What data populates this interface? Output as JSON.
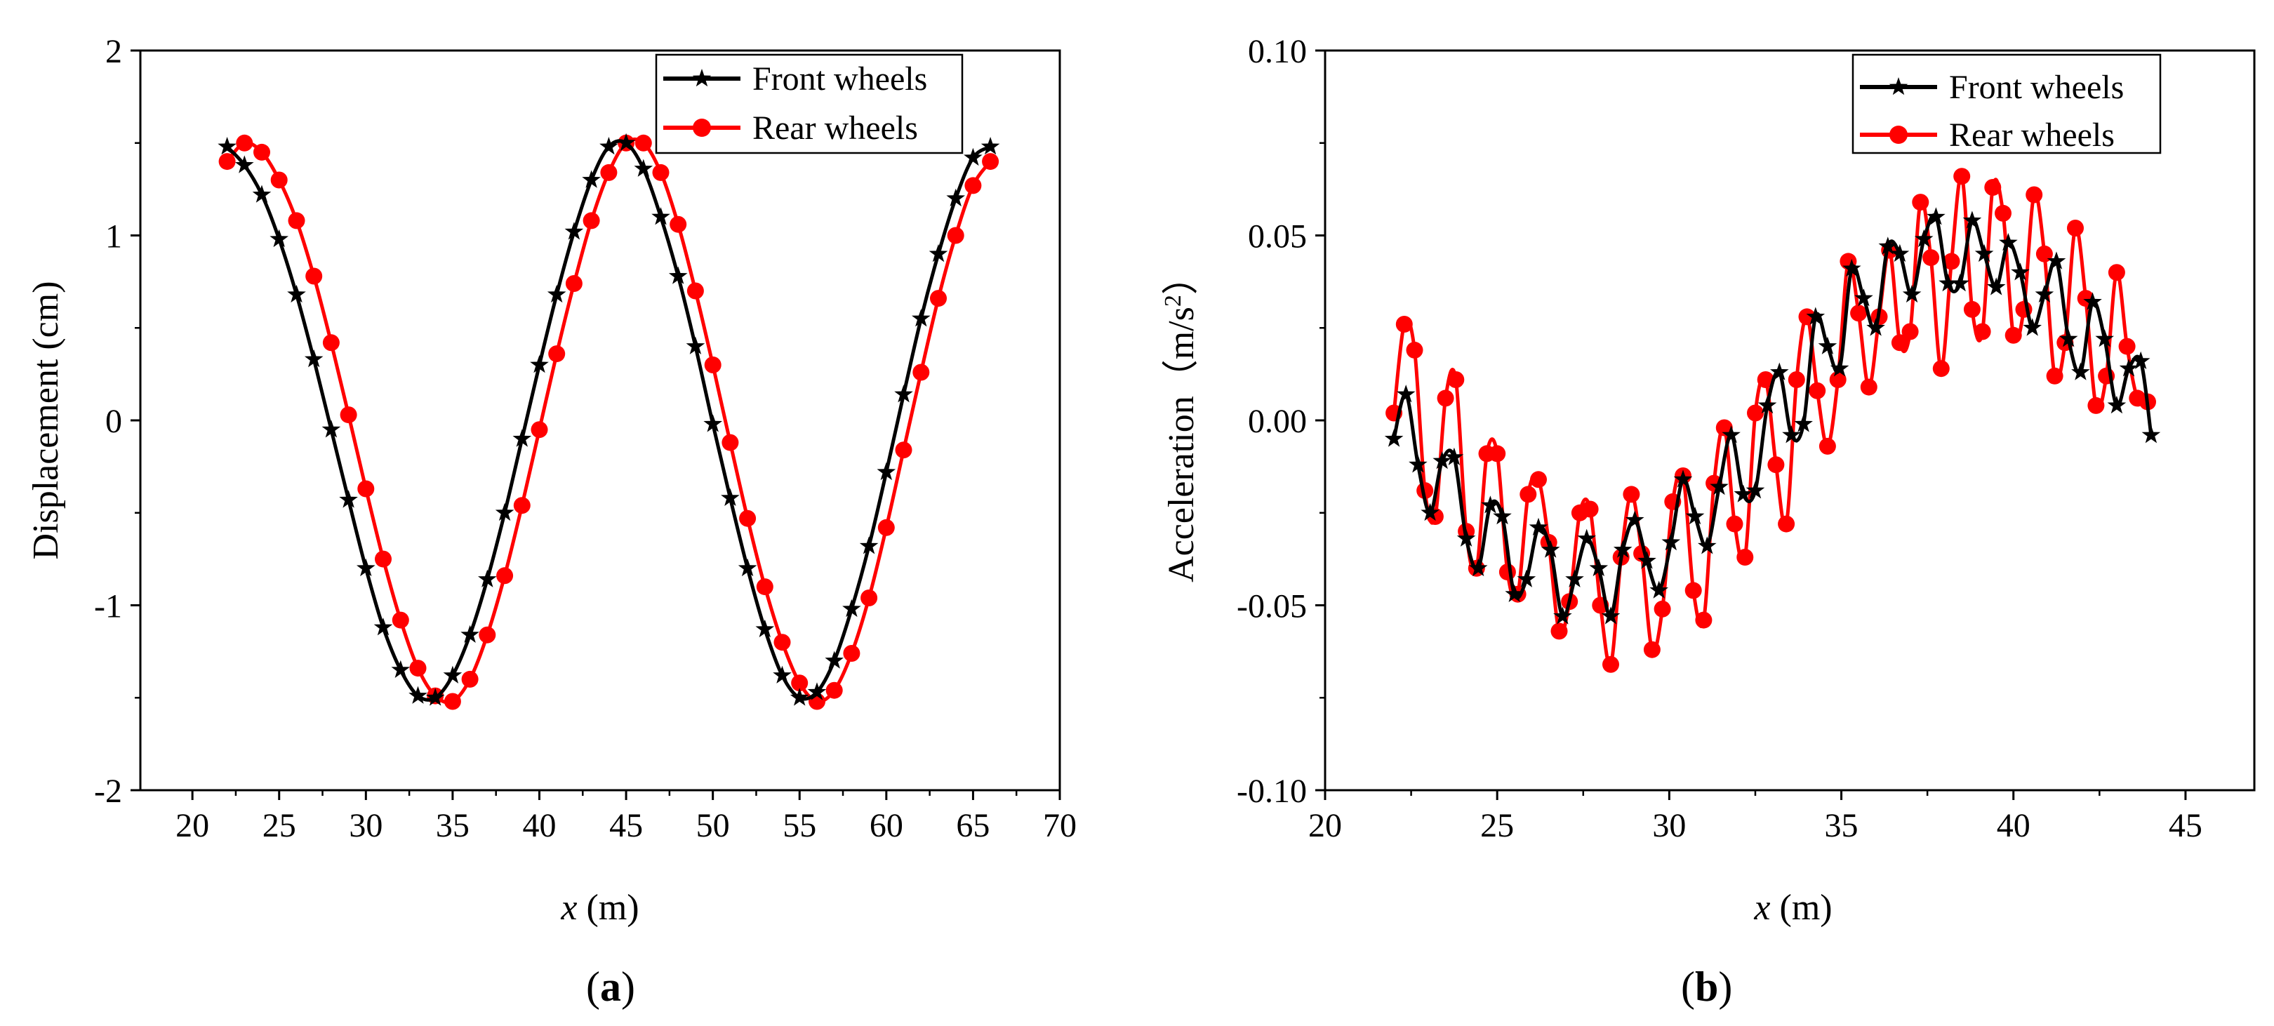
{
  "panel_labels": {
    "a_open": "(",
    "a_letter": "a",
    "a_close": ")",
    "b_open": "(",
    "b_letter": "b",
    "b_close": ")"
  },
  "colors": {
    "front": "#000000",
    "rear": "#ff0000",
    "axis": "#000000"
  },
  "chart_data": [
    {
      "id": "a",
      "type": "line",
      "title": "",
      "xlabel_var": "x",
      "xlabel_unit": " (m)",
      "ylabel": "Displacement (cm)",
      "xlim": [
        17,
        70
      ],
      "ylim": [
        -2,
        2
      ],
      "xticks": [
        20,
        25,
        30,
        35,
        40,
        45,
        50,
        55,
        60,
        65,
        70
      ],
      "xtick_labels": [
        "20",
        "25",
        "30",
        "35",
        "40",
        "45",
        "50",
        "55",
        "60",
        "65",
        "70"
      ],
      "yticks": [
        -2,
        -1,
        0,
        1,
        2
      ],
      "ytick_labels": [
        "-2",
        "-1",
        "0",
        "1",
        "2"
      ],
      "legend_position": "top-right",
      "series": [
        {
          "name": "Front wheels",
          "marker": "star",
          "color": "#000000",
          "x": [
            22,
            23,
            24,
            25,
            26,
            27,
            28,
            29,
            30,
            31,
            32,
            33,
            34,
            35,
            36,
            37,
            38,
            39,
            40,
            41,
            42,
            43,
            44,
            45,
            46,
            47,
            48,
            49,
            50,
            51,
            52,
            53,
            54,
            55,
            56,
            57,
            58,
            59,
            60,
            61,
            62,
            63,
            64,
            65,
            66
          ],
          "y": [
            1.48,
            1.38,
            1.22,
            0.98,
            0.68,
            0.33,
            -0.05,
            -0.43,
            -0.8,
            -1.12,
            -1.35,
            -1.49,
            -1.5,
            -1.38,
            -1.16,
            -0.86,
            -0.5,
            -0.1,
            0.3,
            0.68,
            1.02,
            1.3,
            1.48,
            1.5,
            1.36,
            1.1,
            0.78,
            0.4,
            -0.02,
            -0.42,
            -0.8,
            -1.13,
            -1.38,
            -1.5,
            -1.47,
            -1.3,
            -1.02,
            -0.68,
            -0.28,
            0.14,
            0.55,
            0.9,
            1.2,
            1.42,
            1.48
          ]
        },
        {
          "name": "Rear wheels",
          "marker": "circle",
          "color": "#ff0000",
          "x": [
            22,
            23,
            24,
            25,
            26,
            27,
            28,
            29,
            30,
            31,
            32,
            33,
            34,
            35,
            36,
            37,
            38,
            39,
            40,
            41,
            42,
            43,
            44,
            45,
            46,
            47,
            48,
            49,
            50,
            51,
            52,
            53,
            54,
            55,
            56,
            57,
            58,
            59,
            60,
            61,
            62,
            63,
            64,
            65,
            66
          ],
          "y": [
            1.4,
            1.5,
            1.45,
            1.3,
            1.08,
            0.78,
            0.42,
            0.03,
            -0.37,
            -0.75,
            -1.08,
            -1.34,
            -1.49,
            -1.52,
            -1.4,
            -1.16,
            -0.84,
            -0.46,
            -0.05,
            0.36,
            0.74,
            1.08,
            1.34,
            1.5,
            1.5,
            1.34,
            1.06,
            0.7,
            0.3,
            -0.12,
            -0.53,
            -0.9,
            -1.2,
            -1.42,
            -1.52,
            -1.46,
            -1.26,
            -0.96,
            -0.58,
            -0.16,
            0.26,
            0.66,
            1.0,
            1.27,
            1.4
          ]
        }
      ]
    },
    {
      "id": "b",
      "type": "line",
      "title": "",
      "xlabel_var": "x",
      "xlabel_unit": " (m)",
      "ylabel": "Acceleration（m/s",
      "ylabel_sup": "2",
      "ylabel_end": "）",
      "xlim": [
        20,
        47
      ],
      "ylim": [
        -0.1,
        0.1
      ],
      "xticks": [
        20,
        25,
        30,
        35,
        40,
        45
      ],
      "xtick_labels": [
        "20",
        "25",
        "30",
        "35",
        "40",
        "45"
      ],
      "yticks": [
        -0.1,
        -0.05,
        0,
        0.05,
        0.1
      ],
      "ytick_labels": [
        "-0.10",
        "-0.05",
        "0.00",
        "0.05",
        "0.10"
      ],
      "legend_position": "top-right",
      "series": [
        {
          "name": "Front wheels",
          "marker": "star",
          "color": "#000000",
          "x": [
            22.0,
            22.35,
            22.7,
            23.05,
            23.4,
            23.75,
            24.1,
            24.45,
            24.8,
            25.15,
            25.5,
            25.85,
            26.2,
            26.55,
            26.9,
            27.25,
            27.6,
            27.95,
            28.3,
            28.65,
            29.0,
            29.35,
            29.7,
            30.05,
            30.4,
            30.75,
            31.1,
            31.45,
            31.8,
            32.15,
            32.5,
            32.85,
            33.2,
            33.55,
            33.9,
            34.25,
            34.6,
            34.95,
            35.3,
            35.65,
            36.0,
            36.35,
            36.7,
            37.05,
            37.4,
            37.75,
            38.1,
            38.45,
            38.8,
            39.15,
            39.5,
            39.85,
            40.2,
            40.55,
            40.9,
            41.25,
            41.6,
            41.95,
            42.3,
            42.65,
            43.0,
            43.35,
            43.7,
            44.0
          ],
          "y": [
            -0.005,
            0.007,
            -0.012,
            -0.025,
            -0.011,
            -0.01,
            -0.032,
            -0.04,
            -0.023,
            -0.026,
            -0.047,
            -0.043,
            -0.029,
            -0.035,
            -0.053,
            -0.043,
            -0.032,
            -0.04,
            -0.053,
            -0.035,
            -0.027,
            -0.038,
            -0.046,
            -0.033,
            -0.016,
            -0.026,
            -0.034,
            -0.018,
            -0.004,
            -0.02,
            -0.019,
            0.004,
            0.013,
            -0.004,
            -0.001,
            0.028,
            0.02,
            0.014,
            0.041,
            0.033,
            0.025,
            0.047,
            0.045,
            0.034,
            0.049,
            0.055,
            0.037,
            0.037,
            0.054,
            0.045,
            0.036,
            0.048,
            0.04,
            0.025,
            0.034,
            0.043,
            0.022,
            0.013,
            0.032,
            0.022,
            0.004,
            0.014,
            0.016,
            -0.004
          ]
        },
        {
          "name": "Rear wheels",
          "marker": "circle",
          "color": "#ff0000",
          "x": [
            22.0,
            22.3,
            22.6,
            22.9,
            23.2,
            23.5,
            23.8,
            24.1,
            24.4,
            24.7,
            25.0,
            25.3,
            25.6,
            25.9,
            26.2,
            26.5,
            26.8,
            27.1,
            27.4,
            27.7,
            28.0,
            28.3,
            28.6,
            28.9,
            29.2,
            29.5,
            29.8,
            30.1,
            30.4,
            30.7,
            31.0,
            31.3,
            31.6,
            31.9,
            32.2,
            32.5,
            32.8,
            33.1,
            33.4,
            33.7,
            34.0,
            34.3,
            34.6,
            34.9,
            35.2,
            35.5,
            35.8,
            36.1,
            36.4,
            36.7,
            37.0,
            37.3,
            37.6,
            37.9,
            38.2,
            38.5,
            38.8,
            39.1,
            39.4,
            39.7,
            40.0,
            40.3,
            40.6,
            40.9,
            41.2,
            41.5,
            41.8,
            42.1,
            42.4,
            42.7,
            43.0,
            43.3,
            43.6,
            43.9
          ],
          "y": [
            0.002,
            0.026,
            0.019,
            -0.019,
            -0.026,
            0.006,
            0.011,
            -0.03,
            -0.04,
            -0.009,
            -0.009,
            -0.041,
            -0.047,
            -0.02,
            -0.016,
            -0.033,
            -0.057,
            -0.049,
            -0.025,
            -0.024,
            -0.05,
            -0.066,
            -0.037,
            -0.02,
            -0.036,
            -0.062,
            -0.051,
            -0.022,
            -0.015,
            -0.046,
            -0.054,
            -0.017,
            -0.002,
            -0.028,
            -0.037,
            0.002,
            0.011,
            -0.012,
            -0.028,
            0.011,
            0.028,
            0.008,
            -0.007,
            0.011,
            0.043,
            0.029,
            0.009,
            0.028,
            0.046,
            0.021,
            0.024,
            0.059,
            0.044,
            0.014,
            0.043,
            0.066,
            0.03,
            0.024,
            0.063,
            0.056,
            0.023,
            0.03,
            0.061,
            0.045,
            0.012,
            0.021,
            0.052,
            0.033,
            0.004,
            0.012,
            0.04,
            0.02,
            0.006,
            0.005
          ]
        }
      ]
    }
  ]
}
